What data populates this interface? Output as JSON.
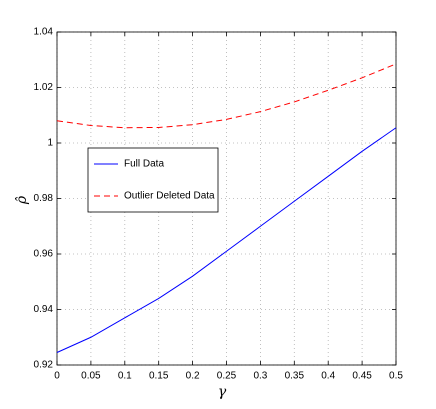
{
  "chart_data": {
    "type": "line",
    "x_label": "γ",
    "y_label": "ρ̂",
    "x": [
      0,
      0.05,
      0.1,
      0.15,
      0.2,
      0.25,
      0.3,
      0.35,
      0.4,
      0.45,
      0.5
    ],
    "series": [
      {
        "name": "Full Data",
        "color": "#0000ff",
        "linestyle": "solid",
        "values": [
          0.9245,
          0.93,
          0.937,
          0.944,
          0.952,
          0.961,
          0.97,
          0.979,
          0.988,
          0.997,
          1.0055
        ]
      },
      {
        "name": "Outlier Deleted Data",
        "color": "#ff0000",
        "linestyle": "dashed",
        "values": [
          1.008,
          1.0063,
          1.0055,
          1.0056,
          1.0066,
          1.0085,
          1.0113,
          1.0148,
          1.019,
          1.0235,
          1.0285
        ]
      }
    ],
    "xlim": [
      0,
      0.5
    ],
    "xticks": [
      0,
      0.05,
      0.1,
      0.15,
      0.2,
      0.25,
      0.3,
      0.35,
      0.4,
      0.45,
      0.5
    ],
    "ylim": [
      0.92,
      1.04
    ],
    "yticks": [
      0.92,
      0.94,
      0.96,
      0.98,
      1,
      1.02,
      1.04
    ],
    "grid": true,
    "legend": "left"
  }
}
